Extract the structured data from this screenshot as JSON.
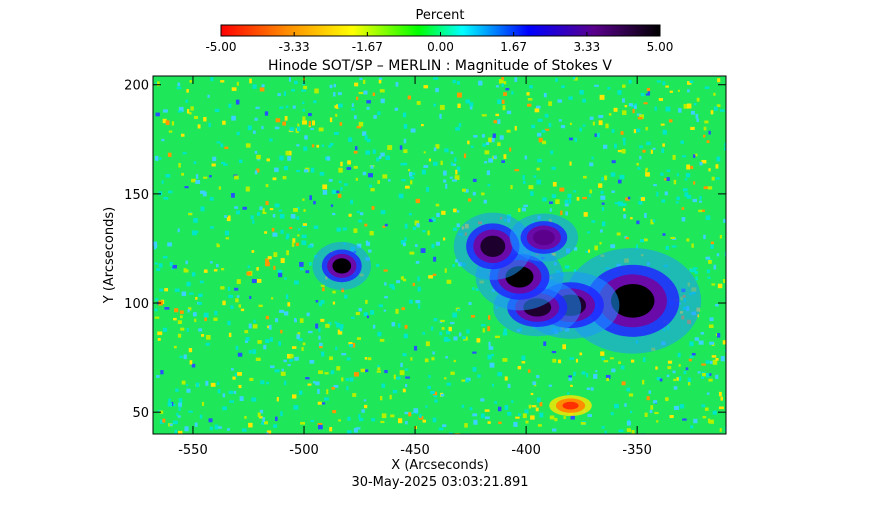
{
  "chart_data": {
    "type": "heatmap",
    "title": "Hinode SOT/SP – MERLIN : Magnitude of Stokes V",
    "colorbar": {
      "label": "Percent",
      "ticks": [
        "-5.00",
        "-3.33",
        "-1.67",
        "0.00",
        "1.67",
        "3.33",
        "5.00"
      ],
      "range": [
        -5,
        5
      ],
      "colors": [
        "#ff0000",
        "#ff8c00",
        "#ffff00",
        "#00ff00",
        "#00ffff",
        "#0000ff",
        "#5a008c",
        "#000000"
      ]
    },
    "xlabel": "X (Arcseconds)",
    "ylabel": "Y (Arcseconds)",
    "xlim": [
      -568,
      -310
    ],
    "ylim": [
      40,
      204
    ],
    "x_ticks": [
      -550,
      -500,
      -450,
      -400,
      -350
    ],
    "y_ticks": [
      50,
      100,
      150,
      200
    ],
    "features": [
      {
        "x": -483,
        "y": 117,
        "rx": 6,
        "ry": 5,
        "value": 5,
        "note_type": "spot"
      },
      {
        "x": -352,
        "y": 101,
        "rx": 14,
        "ry": 11,
        "value": 5,
        "note_type": "spot"
      },
      {
        "x": -380,
        "y": 99,
        "rx": 10,
        "ry": 7,
        "value": 4.5,
        "note_type": "spot"
      },
      {
        "x": -395,
        "y": 98,
        "rx": 9,
        "ry": 6,
        "value": 4.5,
        "note_type": "spot"
      },
      {
        "x": -403,
        "y": 112,
        "rx": 9,
        "ry": 7,
        "value": 5,
        "note_type": "spot"
      },
      {
        "x": -415,
        "y": 126,
        "rx": 8,
        "ry": 7,
        "value": 4.5,
        "note_type": "spot"
      },
      {
        "x": -392,
        "y": 130,
        "rx": 7,
        "ry": 5,
        "value": 3.5,
        "note_type": "spot"
      },
      {
        "x": -380,
        "y": 53,
        "rx": 6,
        "ry": 3,
        "value": -4.5,
        "note_type": "spot"
      }
    ],
    "timestamp": "30-May-2025 03:03:21.891"
  }
}
